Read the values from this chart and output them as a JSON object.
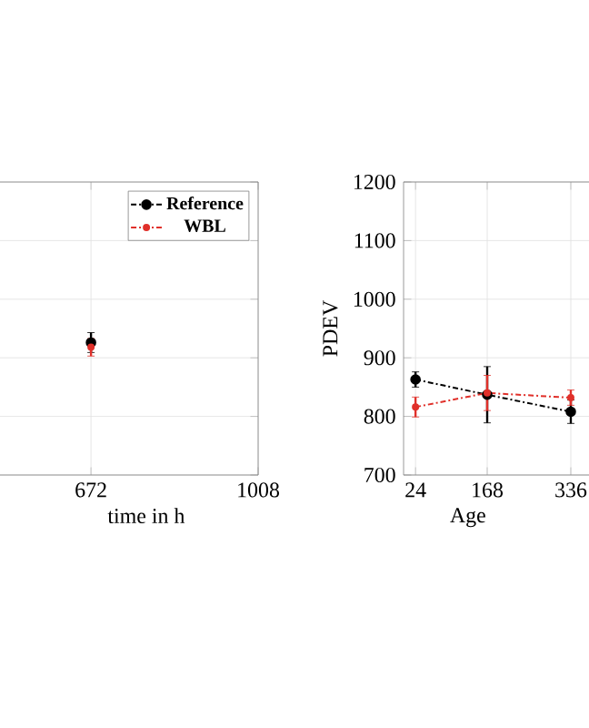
{
  "chart_data": [
    {
      "type": "line",
      "xlabel": "time in h",
      "x": [
        672
      ],
      "xlim": [
        416,
        1008
      ],
      "xticks": [
        672,
        1008
      ],
      "ylim": [
        700,
        1200
      ],
      "yticks": [
        700,
        800,
        900,
        1000,
        1100,
        1200
      ],
      "tick_labels": "x",
      "grid": true,
      "legend": "top right",
      "line_style": "dashed",
      "marker": "circle",
      "series": [
        {
          "name": "Reference",
          "color": "#000000",
          "values": [
            926
          ],
          "errors": [
            17
          ]
        },
        {
          "name": "WBL",
          "color": "#e0302a",
          "values": [
            918
          ],
          "errors": [
            15
          ]
        }
      ]
    },
    {
      "type": "line",
      "xlabel": "Age",
      "ylabel": "PDEV",
      "x": [
        24,
        168,
        336
      ],
      "xlim": [
        0,
        431
      ],
      "xticks": [
        24,
        168,
        336
      ],
      "ylim": [
        700,
        1200
      ],
      "yticks": [
        700,
        800,
        900,
        1000,
        1100,
        1200
      ],
      "grid": true,
      "line_style": "dashed",
      "marker": "circle",
      "series": [
        {
          "color": "#000000",
          "values": [
            863,
            837,
            808
          ],
          "errors": [
            13,
            48,
            20
          ]
        },
        {
          "color": "#e0302a",
          "values": [
            816,
            840,
            832
          ],
          "errors": [
            17,
            30,
            13
          ]
        }
      ]
    }
  ]
}
